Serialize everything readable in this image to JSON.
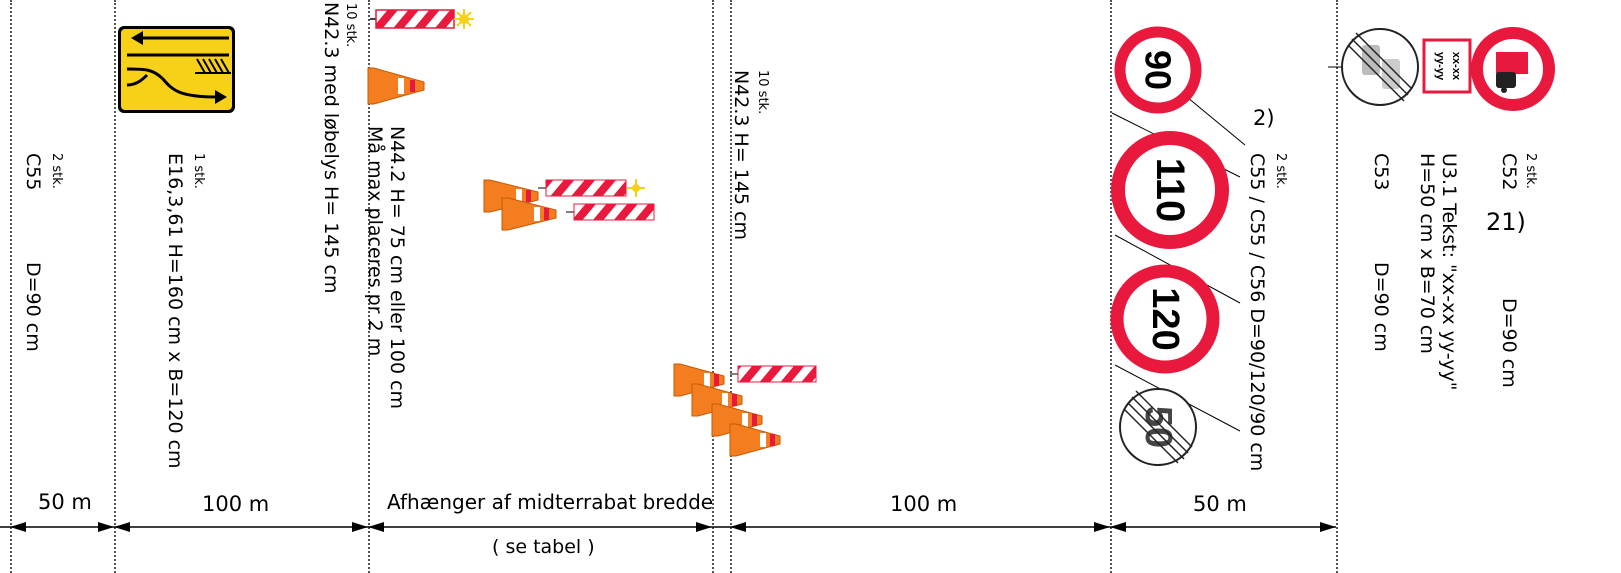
{
  "distances": {
    "d1": "50 m",
    "d2": "100 m",
    "d3": "Afhænger af midterrabat bredde",
    "d3_sub": "( se tabel )",
    "d4": "100 m",
    "d5": "50 m"
  },
  "col1": {
    "qty": "2 stk.",
    "code": "C55",
    "size": "D=90 cm"
  },
  "col2": {
    "qty": "1 stk.",
    "spec": "E16,3,61 H=160 cm x B=120 cm"
  },
  "col3": {
    "qty": "10 stk.",
    "spec": "N42.3 med løbelys   H= 145 cm",
    "spec2": "N44.2  H= 75 cm eller 100 cm",
    "spec3": "Må max placeres pr 2 m"
  },
  "col4": {
    "qty": "10 stk.",
    "spec": "N42.3   H= 145 cm"
  },
  "col5": {
    "note": "2)",
    "qty": "2 stk.",
    "spec": "C55 / C55 / C56  D=90/120/90 cm",
    "signs": [
      "90",
      "110",
      "120",
      "50"
    ]
  },
  "col6": {
    "c53_code": "C53",
    "c53_size": "D=90 cm",
    "u31_line1": "U3.1  Tekst: \"xx-xx  yy-yy\"",
    "u31_line2": "H=50 cm x B=70 cm",
    "u31_plate_top": "xx-xx",
    "u31_plate_bottom": "yy-yy",
    "c52_qty": "2 stk.",
    "c52_code": "C52",
    "c52_size": "D=90 cm",
    "note": "21)"
  },
  "colors": {
    "red": "#e8193c",
    "orange": "#f47d20",
    "yellow": "#f7d117",
    "stripe": "#e8193c"
  }
}
